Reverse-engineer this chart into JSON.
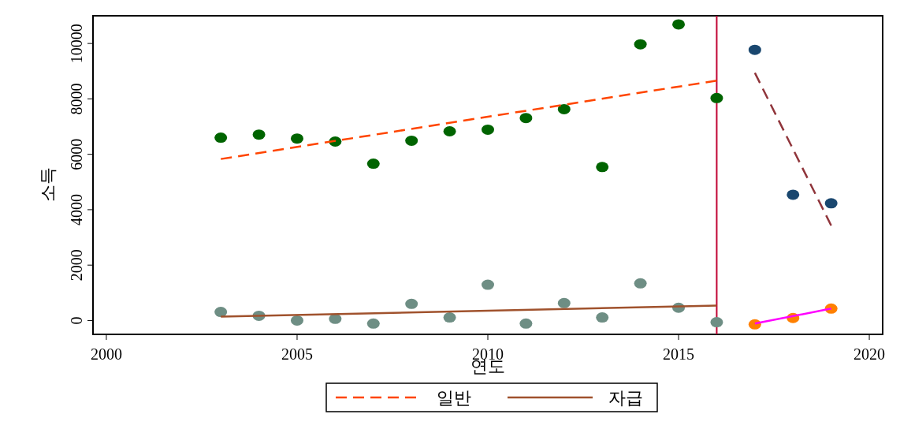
{
  "chart_data": {
    "type": "scatter",
    "xlabel": "연도",
    "ylabel": "소득",
    "xlim": [
      1999.65,
      2020.35
    ],
    "ylim": [
      -500,
      11000
    ],
    "xticks": [
      2000,
      2005,
      2010,
      2015,
      2020
    ],
    "yticks": [
      0,
      2000,
      4000,
      6000,
      8000,
      10000
    ],
    "legend": "bottom",
    "series": [
      {
        "marker": "circle",
        "color": "#006400",
        "x": [
          2003,
          2004,
          2005,
          2006,
          2007,
          2008,
          2009,
          2010,
          2011,
          2012,
          2013,
          2014,
          2015,
          2016
        ],
        "values": [
          6600,
          6710,
          6570,
          6460,
          5660,
          6490,
          6830,
          6890,
          7310,
          7630,
          5540,
          9970,
          10690,
          8030
        ]
      },
      {
        "marker": "circle",
        "color": "#1a476f",
        "x": [
          2017,
          2018,
          2019
        ],
        "values": [
          9770,
          4540,
          4230
        ]
      },
      {
        "marker": "circle",
        "color": "#6e8e84",
        "x": [
          2003,
          2004,
          2005,
          2006,
          2007,
          2008,
          2009,
          2010,
          2011,
          2012,
          2013,
          2014,
          2015,
          2016
        ],
        "values": [
          310,
          170,
          0,
          60,
          -110,
          600,
          110,
          1290,
          -110,
          630,
          110,
          1340,
          460,
          -60
        ]
      },
      {
        "marker": "circle",
        "color": "#ff8000",
        "x": [
          2017,
          2018,
          2019
        ],
        "values": [
          -140,
          90,
          430
        ]
      },
      {
        "type": "line",
        "marker": "none",
        "name": "일반",
        "color": "#ff4500",
        "line_style": "dashed",
        "x": [
          2003,
          2016
        ],
        "values": [
          5830,
          8660
        ]
      },
      {
        "type": "line",
        "marker": "none",
        "name": "자급",
        "color": "#a0522d",
        "line_style": "solid",
        "x": [
          2003,
          2016
        ],
        "values": [
          140,
          540
        ]
      },
      {
        "type": "line",
        "marker": "none",
        "color": "#90353b",
        "line_style": "dashed",
        "x": [
          2017,
          2019
        ],
        "values": [
          8940,
          3430
        ]
      },
      {
        "type": "line",
        "marker": "none",
        "color": "#ff00ff",
        "line_style": "solid",
        "x": [
          2017,
          2019
        ],
        "values": [
          -110,
          430
        ]
      }
    ],
    "ref_lines": [
      {
        "axis": "x",
        "value": 2016,
        "color": "#c10534"
      }
    ]
  }
}
